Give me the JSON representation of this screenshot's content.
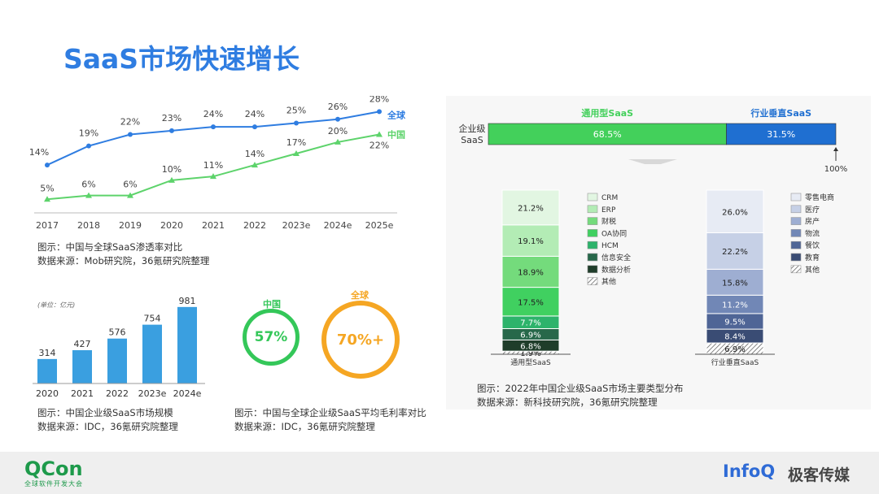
{
  "page": {
    "title": "SaaS市场快速增长"
  },
  "captions": {
    "line_note": "图示：中国与全球SaaS渗透率对比",
    "line_source": "数据来源：Mob研究院，36氪研究院整理",
    "bar_note": "图示：中国企业级SaaS市场规模",
    "bar_source": "数据来源：IDC，36氪研究院整理",
    "margin_note": "图示：中国与全球企业级SaaS平均毛利率对比",
    "margin_source": "数据来源：IDC，36氪研究院整理",
    "dist_note": "图示：2022年中国企业级SaaS市场主要类型分布",
    "dist_source": "数据来源：新科技研究院，36氪研究院整理"
  },
  "footer": {
    "qcon": "QCon",
    "qcon_sub": "全球软件开发大会",
    "infoq": "InfoQ",
    "geek": "极客传媒"
  },
  "colors": {
    "global": "#2f7de1",
    "china": "#5dd36b",
    "bar": "#3a9fe0",
    "orange": "#f5a623",
    "green_ring": "#34c759"
  },
  "chart_data": [
    {
      "id": "penetration",
      "type": "line",
      "title": "",
      "categories": [
        "2017",
        "2018",
        "2019",
        "2020",
        "2021",
        "2022",
        "2023e",
        "2024e",
        "2025e"
      ],
      "series": [
        {
          "name": "全球",
          "values": [
            14,
            19,
            22,
            23,
            24,
            24,
            25,
            26,
            28
          ],
          "labels": [
            "14%",
            "19%",
            "22%",
            "23%",
            "24%",
            "24%",
            "25%",
            "26%",
            "28%"
          ]
        },
        {
          "name": "中国",
          "values": [
            5,
            6,
            6,
            10,
            11,
            14,
            17,
            20,
            22
          ],
          "labels": [
            "5%",
            "6%",
            "6%",
            "10%",
            "11%",
            "14%",
            "17%",
            "20%",
            "22%"
          ]
        }
      ],
      "ylim": [
        0,
        30
      ]
    },
    {
      "id": "market_size",
      "type": "bar",
      "unit": "(单位：亿元)",
      "categories": [
        "2020",
        "2021",
        "2022",
        "2023e",
        "2024e"
      ],
      "values": [
        314,
        427,
        576,
        754,
        981
      ],
      "labels": [
        "314",
        "427",
        "576",
        "754",
        "981"
      ],
      "ylim": [
        0,
        1000
      ]
    },
    {
      "id": "gross_margin",
      "type": "table",
      "items": [
        {
          "name": "中国",
          "value": "57%"
        },
        {
          "name": "全球",
          "value": "70%+"
        }
      ]
    },
    {
      "id": "saas_split",
      "type": "bar",
      "ylabel": "企业级\nSaaS",
      "ylabel_lines": [
        "企业级",
        "SaaS"
      ],
      "segments": [
        {
          "name": "通用型SaaS",
          "value": 68.5,
          "label": "68.5%"
        },
        {
          "name": "行业垂直SaaS",
          "value": 31.5,
          "label": "31.5%"
        }
      ],
      "end_label": "100%"
    },
    {
      "id": "general_saas",
      "type": "bar",
      "xlabel": "通用型SaaS",
      "segments": [
        {
          "name": "其他",
          "value": 1.9,
          "label": "1.9%",
          "color": "hatch"
        },
        {
          "name": "数据分析",
          "value": 6.8,
          "label": "6.8%",
          "color": "#1f3d2a"
        },
        {
          "name": "信息安全",
          "value": 6.9,
          "label": "6.9%",
          "color": "#27684a"
        },
        {
          "name": "HCM",
          "value": 7.7,
          "label": "7.7%",
          "color": "#2db36b"
        },
        {
          "name": "OA协同",
          "value": 17.5,
          "label": "17.5%",
          "color": "#40d060"
        },
        {
          "name": "财税",
          "value": 18.9,
          "label": "18.9%",
          "color": "#74db7c"
        },
        {
          "name": "ERP",
          "value": 19.1,
          "label": "19.1%",
          "color": "#b3ecb5"
        },
        {
          "name": "CRM",
          "value": 21.2,
          "label": "21.2%",
          "color": "#e2f6e2"
        }
      ],
      "legend": [
        "CRM",
        "ERP",
        "财税",
        "OA协同",
        "HCM",
        "信息安全",
        "数据分析",
        "其他"
      ]
    },
    {
      "id": "vertical_saas",
      "type": "bar",
      "xlabel": "行业垂直SaaS",
      "segments": [
        {
          "name": "其他",
          "value": 6.9,
          "label": "6.9%",
          "color": "hatch"
        },
        {
          "name": "教育",
          "value": 8.4,
          "label": "8.4%",
          "color": "#3a4c74"
        },
        {
          "name": "餐饮",
          "value": 9.5,
          "label": "9.5%",
          "color": "#4f6596"
        },
        {
          "name": "物流",
          "value": 11.2,
          "label": "11.2%",
          "color": "#7187b6"
        },
        {
          "name": "房产",
          "value": 15.8,
          "label": "15.8%",
          "color": "#9eaed2"
        },
        {
          "name": "医疗",
          "value": 22.2,
          "label": "22.2%",
          "color": "#c6d0e6"
        },
        {
          "name": "零售电商",
          "value": 26.0,
          "label": "26.0%",
          "color": "#e7ebf4"
        }
      ],
      "legend": [
        "零售电商",
        "医疗",
        "房产",
        "物流",
        "餐饮",
        "教育",
        "其他"
      ]
    }
  ]
}
